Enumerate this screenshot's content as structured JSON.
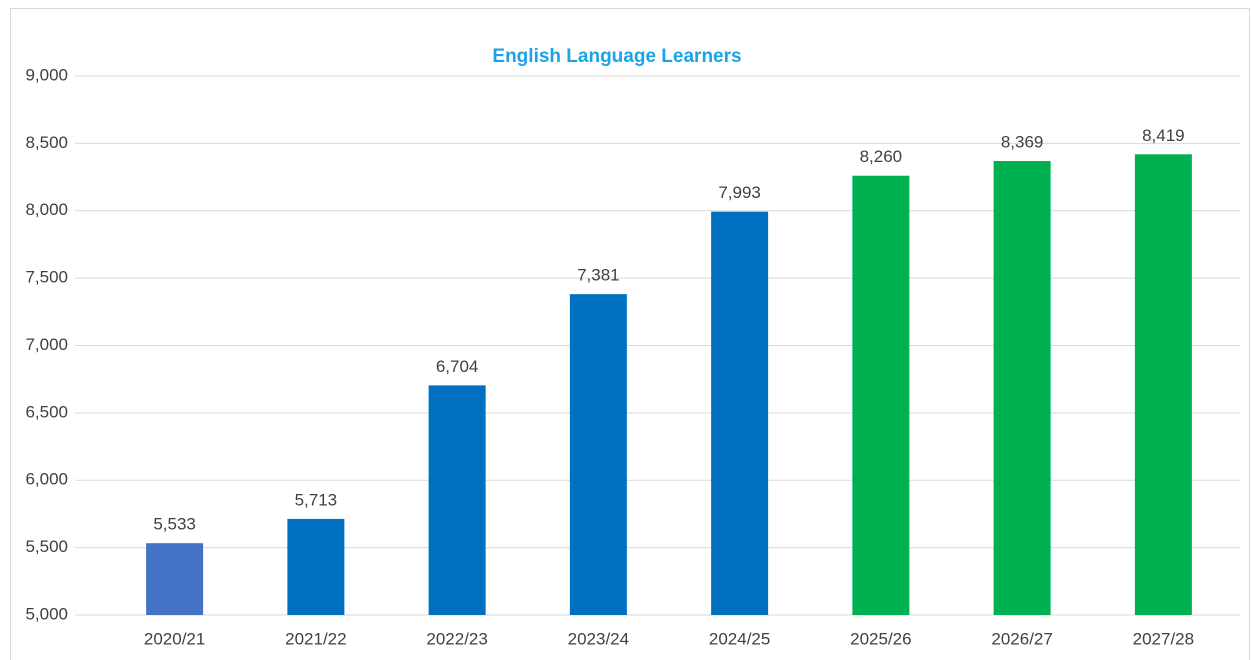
{
  "chart_data": {
    "type": "bar",
    "title": "English Language Learners",
    "categories": [
      "2020/21",
      "2021/22",
      "2022/23",
      "2023/24",
      "2024/25",
      "2025/26",
      "2026/27",
      "2027/28"
    ],
    "values": [
      5533,
      5713,
      6704,
      7381,
      7993,
      8260,
      8369,
      8419
    ],
    "value_labels": [
      "5,533",
      "5,713",
      "6,704",
      "7,381",
      "7,993",
      "8,260",
      "8,369",
      "8,419"
    ],
    "colors": [
      "#4472c4",
      "#0070c0",
      "#0070c0",
      "#0070c0",
      "#0070c0",
      "#00b050",
      "#00b050",
      "#00b050"
    ],
    "ylim": [
      5000,
      9000
    ],
    "yticks": [
      {
        "value": 5000,
        "label": "5,000"
      },
      {
        "value": 5500,
        "label": "5,500"
      },
      {
        "value": 6000,
        "label": "6,000"
      },
      {
        "value": 6500,
        "label": "6,500"
      },
      {
        "value": 7000,
        "label": "7,000"
      },
      {
        "value": 7500,
        "label": "7,500"
      },
      {
        "value": 8000,
        "label": "8,000"
      },
      {
        "value": 8500,
        "label": "8,500"
      },
      {
        "value": 9000,
        "label": "9,000"
      }
    ],
    "grid": true
  }
}
